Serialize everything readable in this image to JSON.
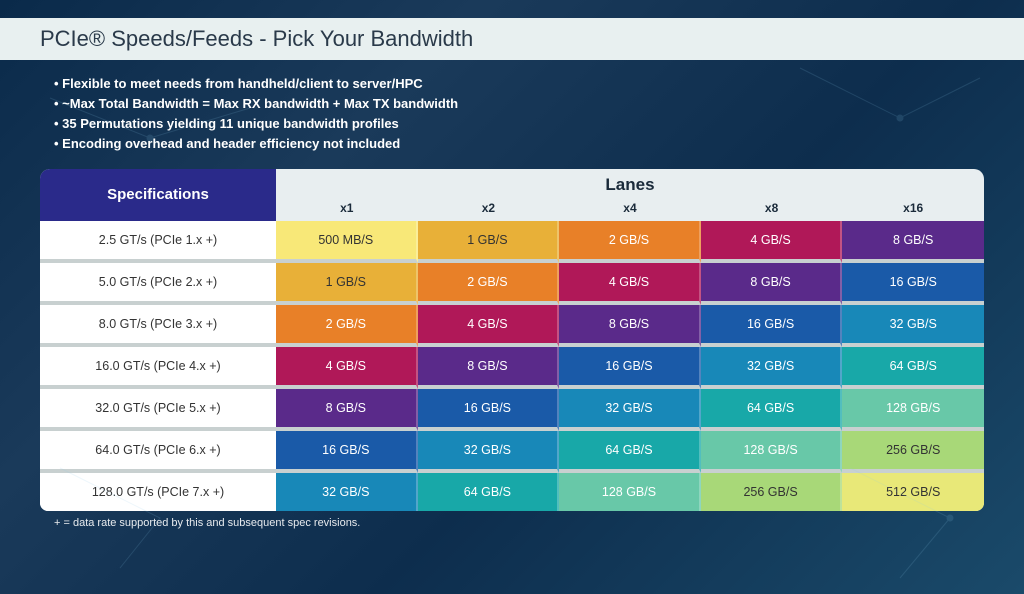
{
  "title": "PCIe® Speeds/Feeds - Pick Your Bandwidth",
  "bullets": [
    "Flexible to meet needs from handheld/client to server/HPC",
    "~Max Total Bandwidth = Max RX bandwidth + Max TX bandwidth",
    "35 Permutations yielding 11 unique bandwidth profiles",
    "Encoding overhead and header efficiency not included"
  ],
  "footnote": "+ = data rate supported by this and subsequent spec revisions.",
  "table": {
    "spec_header": "Specifications",
    "lanes_header": "Lanes",
    "columns": [
      "x1",
      "x2",
      "x4",
      "x8",
      "x16"
    ],
    "col_width_spec_pct": 25,
    "col_width_lane_pct": 15,
    "header_bg": "#e8eef0",
    "spec_header_bg": "#2a2a8a",
    "row_label_bg": "#ffffff",
    "row_gap_color": "#c8d0d0",
    "rows": [
      {
        "label": "2.5 GT/s (PCIe 1.x +)",
        "cells": [
          {
            "v": "500 MB/S",
            "bg": "#f8e878",
            "fg": "#333333"
          },
          {
            "v": "1 GB/S",
            "bg": "#e8b038",
            "fg": "#333333"
          },
          {
            "v": "2 GB/S",
            "bg": "#e88028",
            "fg": "#ffffff"
          },
          {
            "v": "4 GB/S",
            "bg": "#b01858",
            "fg": "#ffffff"
          },
          {
            "v": "8 GB/S",
            "bg": "#5a2a8a",
            "fg": "#ffffff"
          }
        ]
      },
      {
        "label": "5.0 GT/s (PCIe 2.x +)",
        "cells": [
          {
            "v": "1 GB/S",
            "bg": "#e8b038",
            "fg": "#333333"
          },
          {
            "v": "2 GB/S",
            "bg": "#e88028",
            "fg": "#ffffff"
          },
          {
            "v": "4 GB/S",
            "bg": "#b01858",
            "fg": "#ffffff"
          },
          {
            "v": "8 GB/S",
            "bg": "#5a2a8a",
            "fg": "#ffffff"
          },
          {
            "v": "16 GB/S",
            "bg": "#1a5aa8",
            "fg": "#ffffff"
          }
        ]
      },
      {
        "label": "8.0 GT/s (PCIe 3.x +)",
        "cells": [
          {
            "v": "2 GB/S",
            "bg": "#e88028",
            "fg": "#ffffff"
          },
          {
            "v": "4 GB/S",
            "bg": "#b01858",
            "fg": "#ffffff"
          },
          {
            "v": "8 GB/S",
            "bg": "#5a2a8a",
            "fg": "#ffffff"
          },
          {
            "v": "16 GB/S",
            "bg": "#1a5aa8",
            "fg": "#ffffff"
          },
          {
            "v": "32 GB/S",
            "bg": "#1888b8",
            "fg": "#ffffff"
          }
        ]
      },
      {
        "label": "16.0 GT/s (PCIe 4.x +)",
        "cells": [
          {
            "v": "4 GB/S",
            "bg": "#b01858",
            "fg": "#ffffff"
          },
          {
            "v": "8 GB/S",
            "bg": "#5a2a8a",
            "fg": "#ffffff"
          },
          {
            "v": "16 GB/S",
            "bg": "#1a5aa8",
            "fg": "#ffffff"
          },
          {
            "v": "32 GB/S",
            "bg": "#1888b8",
            "fg": "#ffffff"
          },
          {
            "v": "64 GB/S",
            "bg": "#18a8a8",
            "fg": "#ffffff"
          }
        ]
      },
      {
        "label": "32.0 GT/s (PCIe 5.x +)",
        "cells": [
          {
            "v": "8 GB/S",
            "bg": "#5a2a8a",
            "fg": "#ffffff"
          },
          {
            "v": "16 GB/S",
            "bg": "#1a5aa8",
            "fg": "#ffffff"
          },
          {
            "v": "32 GB/S",
            "bg": "#1888b8",
            "fg": "#ffffff"
          },
          {
            "v": "64 GB/S",
            "bg": "#18a8a8",
            "fg": "#ffffff"
          },
          {
            "v": "128 GB/S",
            "bg": "#68c8a8",
            "fg": "#ffffff"
          }
        ]
      },
      {
        "label": "64.0 GT/s (PCIe 6.x +)",
        "cells": [
          {
            "v": "16 GB/S",
            "bg": "#1a5aa8",
            "fg": "#ffffff"
          },
          {
            "v": "32 GB/S",
            "bg": "#1888b8",
            "fg": "#ffffff"
          },
          {
            "v": "64 GB/S",
            "bg": "#18a8a8",
            "fg": "#ffffff"
          },
          {
            "v": "128 GB/S",
            "bg": "#68c8a8",
            "fg": "#ffffff"
          },
          {
            "v": "256 GB/S",
            "bg": "#a8d878",
            "fg": "#333333"
          }
        ]
      },
      {
        "label": "128.0 GT/s (PCIe 7.x +)",
        "cells": [
          {
            "v": "32 GB/S",
            "bg": "#1888b8",
            "fg": "#ffffff"
          },
          {
            "v": "64 GB/S",
            "bg": "#18a8a8",
            "fg": "#ffffff"
          },
          {
            "v": "128 GB/S",
            "bg": "#68c8a8",
            "fg": "#ffffff"
          },
          {
            "v": "256 GB/S",
            "bg": "#a8d878",
            "fg": "#333333"
          },
          {
            "v": "512 GB/S",
            "bg": "#e8e878",
            "fg": "#333333"
          }
        ]
      }
    ]
  },
  "style": {
    "title_fontsize": 22,
    "bullet_fontsize": 13,
    "cell_fontsize": 12.5,
    "background_gradient": [
      "#0a2a4a",
      "#1a3a5a",
      "#0d2d4d",
      "#1a4a6a"
    ]
  }
}
